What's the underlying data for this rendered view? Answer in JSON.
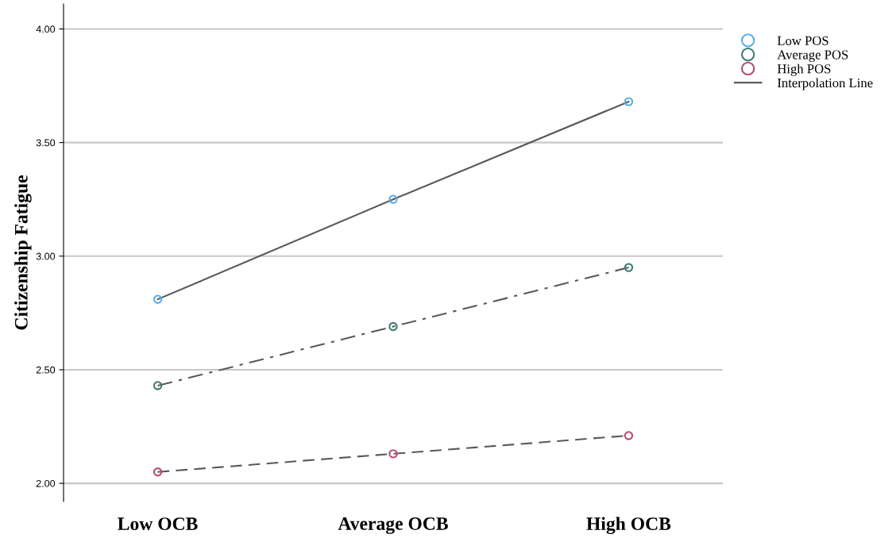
{
  "chart_data": {
    "type": "line",
    "ylabel": "Citizenship Fatigue",
    "categories": [
      "Low OCB",
      "Average OCB",
      "High OCB"
    ],
    "series": [
      {
        "name": "Low POS",
        "type": "scatter",
        "color": "#5aaee6",
        "marker": "circle",
        "values": [
          2.81,
          3.25,
          3.68
        ]
      },
      {
        "name": "Average POS",
        "type": "scatter",
        "color": "#3e7d72",
        "marker": "circle",
        "values": [
          2.43,
          2.69,
          2.95
        ]
      },
      {
        "name": "High POS",
        "type": "scatter",
        "color": "#b94c72",
        "marker": "circle",
        "values": [
          2.05,
          2.13,
          2.21
        ]
      },
      {
        "name": "Interpolation Line",
        "color": "#595959",
        "line_style": "solid",
        "values": [
          2.81,
          3.25,
          3.68
        ]
      },
      {
        "color": "#595959",
        "line_style": "dashdot",
        "values": [
          2.43,
          2.69,
          2.95
        ]
      },
      {
        "color": "#595959",
        "line_style": "dashed",
        "values": [
          2.05,
          2.13,
          2.21
        ]
      }
    ],
    "ylim": [
      1.92,
      4.11
    ],
    "yticks": [
      {
        "value": 2,
        "label": "2.00"
      },
      {
        "value": 2.5,
        "label": "2.50"
      },
      {
        "value": 3,
        "label": "3.00"
      },
      {
        "value": 3.5,
        "label": "3.50"
      },
      {
        "value": 4,
        "label": "4.00"
      }
    ],
    "grid": "y",
    "legend": "top right"
  }
}
